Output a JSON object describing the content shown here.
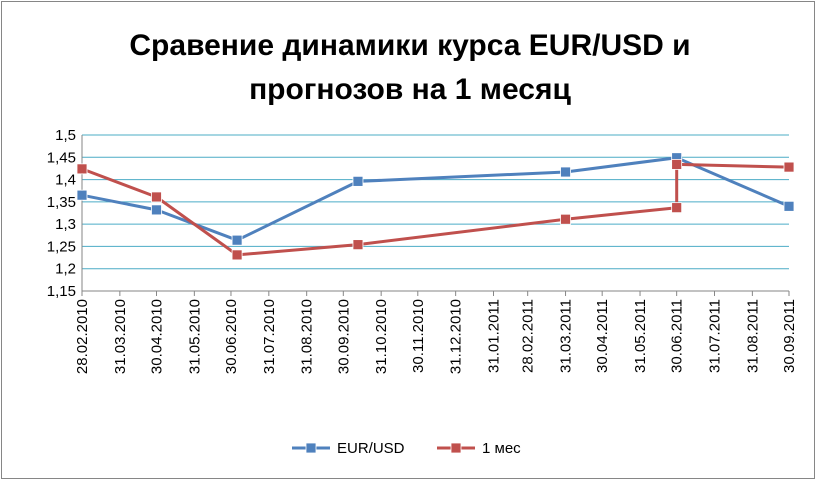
{
  "chart_data": {
    "type": "line",
    "title_lines": [
      "Сравение динамики курса EUR/USD и",
      "прогнозов на 1 месяц"
    ],
    "xlabel": "",
    "ylabel": "",
    "x_ticks": [
      "28.02.2010",
      "31.03.2010",
      "30.04.2010",
      "31.05.2010",
      "30.06.2010",
      "31.07.2010",
      "31.08.2010",
      "30.09.2010",
      "31.10.2010",
      "30.11.2010",
      "31.12.2010",
      "31.01.2011",
      "28.02.2011",
      "31.03.2011",
      "30.04.2011",
      "31.05.2011",
      "30.06.2011",
      "31.07.2011",
      "31.08.2011",
      "30.09.2011"
    ],
    "xlim": [
      "2010-02-28",
      "2011-09-30"
    ],
    "y_ticks": [
      "1,15",
      "1,2",
      "1,25",
      "1,3",
      "1,35",
      "1,4",
      "1,45",
      "1,5"
    ],
    "ylim": [
      1.15,
      1.5
    ],
    "grid": "horizontal",
    "legend": "bottom",
    "series": [
      {
        "name": "EUR/USD",
        "color": "#4f81bd",
        "marker_color": "#4f81bd",
        "points": [
          {
            "x": "2010-02-28",
            "y": 1.365
          },
          {
            "x": "2010-04-30",
            "y": 1.332
          },
          {
            "x": "2010-07-05",
            "y": 1.264
          },
          {
            "x": "2010-10-12",
            "y": 1.396
          },
          {
            "x": "2011-03-31",
            "y": 1.417
          },
          {
            "x": "2011-06-30",
            "y": 1.449
          },
          {
            "x": "2011-09-30",
            "y": 1.34
          }
        ]
      },
      {
        "name": "1 мес",
        "color": "#c0504d",
        "marker_color": "#c0504d",
        "points": [
          {
            "x": "2010-02-28",
            "y": 1.424
          },
          {
            "x": "2010-04-30",
            "y": 1.361
          },
          {
            "x": "2010-07-05",
            "y": 1.231
          },
          {
            "x": "2010-10-12",
            "y": 1.254
          },
          {
            "x": "2011-03-31",
            "y": 1.311
          },
          {
            "x": "2011-06-30",
            "y": 1.337
          },
          {
            "x": "2011-06-30",
            "y": 1.434
          },
          {
            "x": "2011-09-30",
            "y": 1.428
          }
        ]
      }
    ]
  }
}
